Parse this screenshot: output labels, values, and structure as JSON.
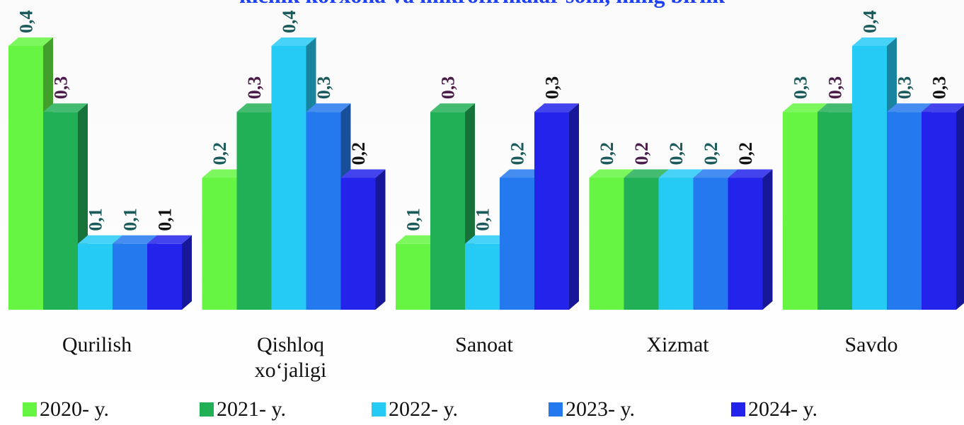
{
  "chart_data": {
    "type": "bar3d",
    "title": "kichik korxona va mikrofirmalar soni, ming birlik",
    "categories": [
      "Qurilish",
      "Qishloq xo‘jaligi",
      "Sanoat",
      "Xizmat",
      "Savdo"
    ],
    "series": [
      {
        "name": "2020- y.",
        "color": "#66f542",
        "label_color": "#1b5a5a",
        "values": [
          0.4,
          0.2,
          0.1,
          0.2,
          0.3
        ]
      },
      {
        "name": "2021- y.",
        "color": "#22b057",
        "label_color": "#4a1c4a",
        "values": [
          0.3,
          0.3,
          0.3,
          0.2,
          0.3
        ]
      },
      {
        "name": "2022- y.",
        "color": "#25cbf5",
        "label_color": "#1b5a5a",
        "values": [
          0.1,
          0.4,
          0.1,
          0.2,
          0.4
        ]
      },
      {
        "name": "2023- y.",
        "color": "#2479ee",
        "label_color": "#1b5a5a",
        "values": [
          0.1,
          0.3,
          0.2,
          0.2,
          0.3
        ]
      },
      {
        "name": "2024- y.",
        "color": "#2323ec",
        "label_color": "#111111",
        "values": [
          0.1,
          0.2,
          0.3,
          0.2,
          0.3
        ]
      }
    ],
    "value_labels": [
      [
        "0,4",
        "0,2",
        "0,1",
        "0,2",
        "0,3"
      ],
      [
        "0,3",
        "0,3",
        "0,3",
        "0,2",
        "0,3"
      ],
      [
        "0,1",
        "0,4",
        "0,1",
        "0,2",
        "0,4"
      ],
      [
        "0,1",
        "0,3",
        "0,2",
        "0,2",
        "0,3"
      ],
      [
        "0,1",
        "0,2",
        "0,3",
        "0,2",
        "0,3"
      ]
    ],
    "legend": "bottom"
  }
}
